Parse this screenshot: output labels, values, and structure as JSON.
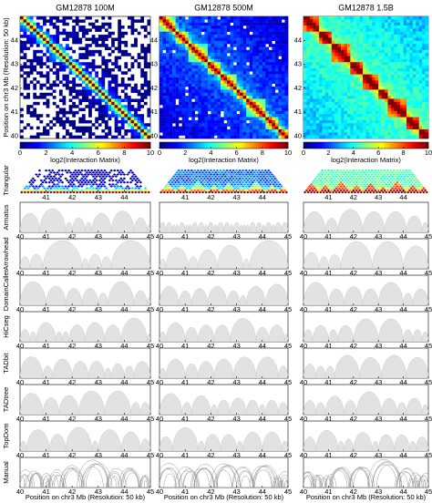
{
  "columns": [
    {
      "title": "GM12878 100M"
    },
    {
      "title": "GM12878 500M"
    },
    {
      "title": "GM12878 1.5B"
    }
  ],
  "heatmap": {
    "ylabel": "Position on chr3 Mb (Resolution: 50 kb)",
    "ylim": [
      39.9,
      45
    ],
    "yticks": [
      40,
      41,
      42,
      43,
      44
    ]
  },
  "colorbar": {
    "label": "log2(Interaction Matrix)",
    "lim": [
      0,
      10
    ],
    "ticks": [
      0,
      2,
      4,
      6,
      8,
      10
    ]
  },
  "triangular": {
    "label": "Triangular",
    "xlim": [
      40,
      45
    ],
    "xticks": [
      41,
      42,
      43,
      44
    ]
  },
  "tracks": [
    {
      "label": "Armatus"
    },
    {
      "label": "Arrowhead"
    },
    {
      "label": "DomainCaller"
    },
    {
      "label": "HiCseg"
    },
    {
      "label": "TADbit"
    },
    {
      "label": "TADtree"
    },
    {
      "label": "TopDom"
    },
    {
      "label": "Manual"
    }
  ],
  "track_axis": {
    "xlim": [
      40,
      45
    ],
    "xticks": [
      40,
      41,
      42,
      43,
      44,
      45
    ]
  },
  "xlabel": "Position on chr3 Mb (Resolution: 50 kb)"
}
